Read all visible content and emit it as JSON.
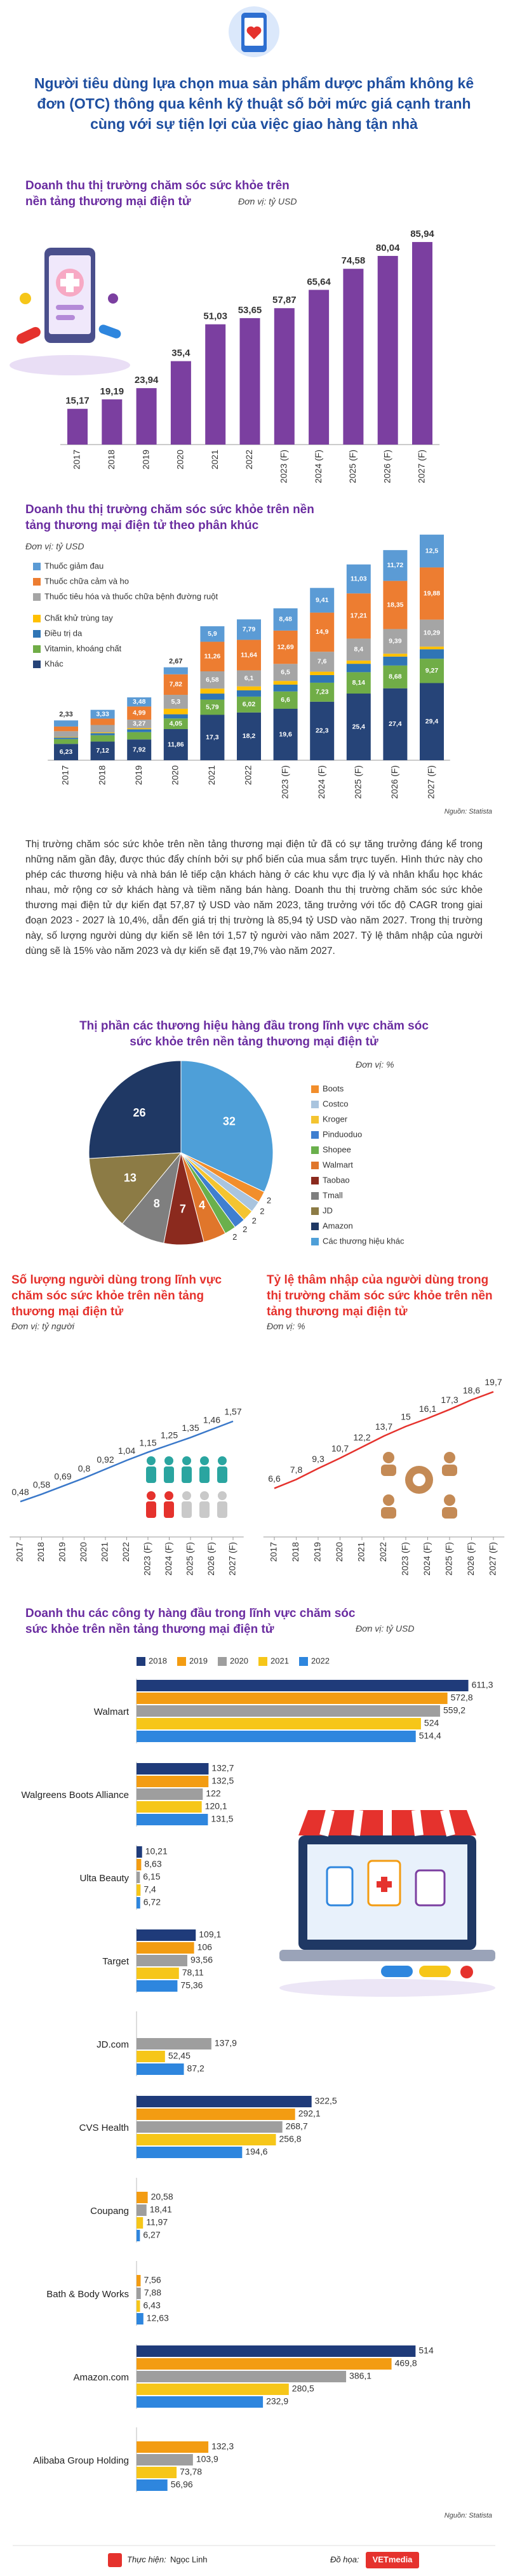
{
  "header": {
    "title": "Người tiêu dùng lựa chọn mua sản phẩm dược phẩm không kê đơn (OTC) thông qua kênh kỹ thuật số bởi mức giá cạnh tranh cùng với sự tiện lợi của việc giao hàng tận nhà"
  },
  "article": {
    "paragraph": "Thị trường chăm sóc sức khỏe trên nền tảng thương mại điện tử đã có sự tăng trưởng đáng kể trong những năm gần đây, được thúc đẩy chính bởi sự phổ biến của mua sắm trực tuyến. Hình thức này cho phép các thương hiệu và nhà bán lẻ tiếp cận khách hàng ở các khu vực địa lý và nhân khẩu học khác nhau, mở rộng cơ sở khách hàng và tiềm năng bán hàng. Doanh thu thị trường chăm sóc sức khỏe thương mại điện tử dự kiến đạt 57,87 tỷ USD vào năm 2023, tăng trưởng với tốc độ CAGR trong giai đoạn 2023 - 2027 là 10,4%, dẫn đến giá trị thị trường là 85,94 tỷ USD vào năm 2027. Trong thị trường này, số lượng người dùng dự kiến sẽ lên tới 1,57 tỷ người vào năm 2027. Tỷ lệ thâm nhập của người dùng sẽ là 15% vào năm 2023 và dự kiến sẽ đạt 19,7% vào năm 2027."
  },
  "footer": {
    "credit_label": "Thực hiện:",
    "author": "Ngọc Linh",
    "design_label": "Đồ họa:",
    "design": "VETmedia"
  },
  "chart_data": [
    {
      "type": "bar",
      "title": "Doanh thu thị trường chăm sóc sức khỏe trên nền tảng thương mại điện tử",
      "unit": "Đơn vị: tỷ USD",
      "categories": [
        "2017",
        "2018",
        "2019",
        "2020",
        "2021",
        "2022",
        "2023 (F)",
        "2024 (F)",
        "2025 (F)",
        "2026 (F)",
        "2027 (F)"
      ],
      "values": [
        15.17,
        19.19,
        23.94,
        35.4,
        51.03,
        53.65,
        57.87,
        65.64,
        74.58,
        80.04,
        85.94
      ],
      "value_labels": [
        "15,17",
        "19,19",
        "23,94",
        "35,4",
        "51,03",
        "53,65",
        "57,87",
        "65,64",
        "74,58",
        "80,04",
        "85,94"
      ],
      "color": "#7b3fa0",
      "ylim": [
        0,
        90
      ]
    },
    {
      "type": "stacked_bar",
      "title": "Doanh thu thị trường chăm sóc sức khỏe trên nền tảng thương mại điện tử theo phân khúc",
      "unit": "Đơn vị: tỷ USD",
      "source": "Nguồn: Statista",
      "categories": [
        "2017",
        "2018",
        "2019",
        "2020",
        "2021",
        "2022",
        "2023 (F)",
        "2024 (F)",
        "2025 (F)",
        "2026 (F)",
        "2027 (F)"
      ],
      "series": [
        {
          "name": "Thuốc giảm đau",
          "color": "#5b9bd5",
          "values": [
            2.33,
            3.33,
            3.48,
            2.67,
            5.9,
            7.79,
            8.48,
            9.41,
            11.03,
            11.72,
            12.5
          ],
          "value_labels": [
            "2,33",
            "3,33",
            "3,48",
            "2,67",
            "5,9",
            "7,79",
            "8,48",
            "9,41",
            "11,03",
            "11,72",
            "12,5"
          ]
        },
        {
          "name": "Thuốc chữa cảm và ho",
          "color": "#ed7d31",
          "values": [
            1.79,
            2.43,
            4.99,
            7.82,
            11.26,
            11.64,
            12.69,
            14.9,
            17.21,
            18.35,
            19.88
          ],
          "value_labels": [
            null,
            null,
            "4,99",
            "7,82",
            "11,26",
            "11,64",
            "12,69",
            "14,9",
            "17,21",
            "18,35",
            "19,88"
          ]
        },
        {
          "name": "Thuốc tiêu hóa và thuốc chữa bệnh đường ruột",
          "color": "#a5a5a5",
          "values": [
            2.22,
            2.81,
            3.27,
            5.3,
            6.58,
            6.1,
            6.5,
            7.6,
            8.4,
            9.39,
            10.29
          ],
          "value_labels": [
            null,
            null,
            "3,27",
            "5,3",
            "6,58",
            "6,1",
            "6,5",
            "7,6",
            "8,4",
            "9,39",
            "10,29"
          ]
        },
        {
          "name": "Chất khử trùng tay",
          "color": "#ffc000",
          "values": [
            0.2,
            0.3,
            0.4,
            2.1,
            1.9,
            1.5,
            1.4,
            1.3,
            1.2,
            1.1,
            1.0
          ]
        },
        {
          "name": "Điều trị da",
          "color": "#2f75b5",
          "values": [
            0.6,
            0.8,
            1.1,
            1.6,
            2.3,
            2.4,
            2.6,
            2.9,
            3.2,
            3.4,
            3.6
          ]
        },
        {
          "name": "Vitamin, khoáng chất",
          "color": "#70ad47",
          "values": [
            1.8,
            2.4,
            2.78,
            4.05,
            5.79,
            6.02,
            6.6,
            7.23,
            8.14,
            8.68,
            9.27
          ],
          "value_labels": [
            null,
            null,
            null,
            "4,05",
            "5,79",
            "6,02",
            "6,6",
            "7,23",
            "8,14",
            "8,68",
            "9,27"
          ]
        },
        {
          "name": "Khác",
          "color": "#264478",
          "values": [
            6.23,
            7.12,
            7.92,
            11.86,
            17.3,
            18.2,
            19.6,
            22.3,
            25.4,
            27.4,
            29.4
          ],
          "value_labels": [
            "6,23",
            "7,12",
            "7,92",
            "11,86",
            "17,3",
            "18,2",
            "19,6",
            "22,3",
            "25,4",
            "27,4",
            "29,4"
          ]
        }
      ],
      "ylim": [
        0,
        90
      ]
    },
    {
      "type": "pie",
      "title": "Thị phần các thương hiệu hàng đầu trong lĩnh vực chăm sóc sức khỏe trên nền tảng thương mại điện tử",
      "unit": "Đơn vị: %",
      "categories": [
        "Boots",
        "Costco",
        "Kroger",
        "Pinduoduo",
        "Shopee",
        "Walmart",
        "Taobao",
        "Tmall",
        "JD",
        "Amazon",
        "Các thương hiệu khác"
      ],
      "values": [
        2,
        2,
        2,
        2,
        2,
        4,
        7,
        8,
        13,
        26,
        32
      ],
      "colors": [
        "#f28e2b",
        "#a9c4de",
        "#f4c430",
        "#3f7fd0",
        "#6ab04c",
        "#e0762b",
        "#8b2a1e",
        "#7f7f7f",
        "#8c7b45",
        "#1f3864",
        "#4e9fd8"
      ]
    },
    {
      "type": "line",
      "title": "Số lượng người dùng trong lĩnh vực chăm sóc sức khỏe trên nền tảng thương mại điện tử",
      "unit": "Đơn vị: tỷ người",
      "categories": [
        "2017",
        "2018",
        "2019",
        "2020",
        "2021",
        "2022",
        "2023 (F)",
        "2024 (F)",
        "2025 (F)",
        "2026 (F)",
        "2027 (F)"
      ],
      "values": [
        0.48,
        0.58,
        0.69,
        0.8,
        0.92,
        1.04,
        1.15,
        1.25,
        1.35,
        1.46,
        1.57
      ],
      "value_labels": [
        "0,48",
        "0,58",
        "0,69",
        "0,8",
        "0,92",
        "1,04",
        "1,15",
        "1,25",
        "1,35",
        "1,46",
        "1,57"
      ],
      "color": "#3a78c9",
      "ylim": [
        0,
        2.5
      ]
    },
    {
      "type": "line",
      "title": "Tỷ lệ thâm nhập của người dùng trong thị trường chăm sóc sức khỏe trên nền tảng thương mại điện tử",
      "unit": "Đơn vị: %",
      "categories": [
        "2017",
        "2018",
        "2019",
        "2020",
        "2021",
        "2022",
        "2023 (F)",
        "2024 (F)",
        "2025 (F)",
        "2026 (F)",
        "2027 (F)"
      ],
      "values": [
        6.6,
        7.8,
        9.3,
        10.7,
        12.2,
        13.7,
        15,
        16.1,
        17.3,
        18.6,
        19.7
      ],
      "value_labels": [
        "6,6",
        "7,8",
        "9,3",
        "10,7",
        "12,2",
        "13,7",
        "15",
        "16,1",
        "17,3",
        "18,6",
        "19,7"
      ],
      "color": "#e5322d",
      "ylim": [
        0,
        25
      ]
    },
    {
      "type": "hbar",
      "title": "Doanh thu các công ty hàng đầu trong lĩnh vực chăm sóc sức khỏe trên nền tảng thương mại điện tử",
      "unit": "Đơn vị: tỷ USD",
      "source": "Nguồn: Statista",
      "categories": [
        "Walmart",
        "Walgreens Boots Alliance",
        "Ulta Beauty",
        "Target",
        "JD.com",
        "CVS Health",
        "Coupang",
        "Bath & Body Works",
        "Amazon.com",
        "Alibaba Group Holding"
      ],
      "series": [
        {
          "name": "2018",
          "color": "#1f3b7a",
          "values": [
            611.3,
            132.7,
            10.21,
            109.1,
            null,
            322.5,
            null,
            null,
            514,
            null
          ],
          "value_labels": [
            "611,3",
            "132,7",
            "10,21",
            "109,1",
            null,
            "322,5",
            null,
            null,
            "514",
            null
          ]
        },
        {
          "name": "2019",
          "color": "#f39c12",
          "values": [
            572.8,
            132.5,
            8.63,
            106,
            null,
            292.1,
            20.58,
            7.56,
            469.8,
            132.3
          ],
          "value_labels": [
            "572,8",
            "132,5",
            "8,63",
            "106",
            null,
            "292,1",
            "20,58",
            "7,56",
            "469,8",
            "132,3"
          ]
        },
        {
          "name": "2020",
          "color": "#9e9e9e",
          "values": [
            559.2,
            122,
            6.15,
            93.56,
            137.9,
            268.7,
            18.41,
            7.88,
            386.1,
            103.9
          ],
          "value_labels": [
            "559,2",
            "122",
            "6,15",
            "93,56",
            "137,9",
            "268,7",
            "18,41",
            "7,88",
            "386,1",
            "103,9"
          ]
        },
        {
          "name": "2021",
          "color": "#f6c619",
          "values": [
            524,
            120.1,
            7.4,
            78.11,
            52.45,
            256.8,
            11.97,
            6.43,
            280.5,
            73.78
          ],
          "value_labels": [
            "524",
            "120,1",
            "7,4",
            "78,11",
            "52,45",
            "256,8",
            "11,97",
            "6,43",
            "280,5",
            "73,78"
          ]
        },
        {
          "name": "2022",
          "color": "#2e86de",
          "values": [
            514.4,
            131.5,
            6.72,
            75.36,
            87.2,
            194.6,
            6.27,
            12.63,
            232.9,
            56.96
          ],
          "value_labels": [
            "514,4",
            "131,5",
            "6,72",
            "75,36",
            "87,2",
            "194,6",
            "6,27",
            "12,63",
            "232,9",
            "56,96"
          ]
        }
      ],
      "xlim": [
        0,
        620
      ]
    }
  ]
}
